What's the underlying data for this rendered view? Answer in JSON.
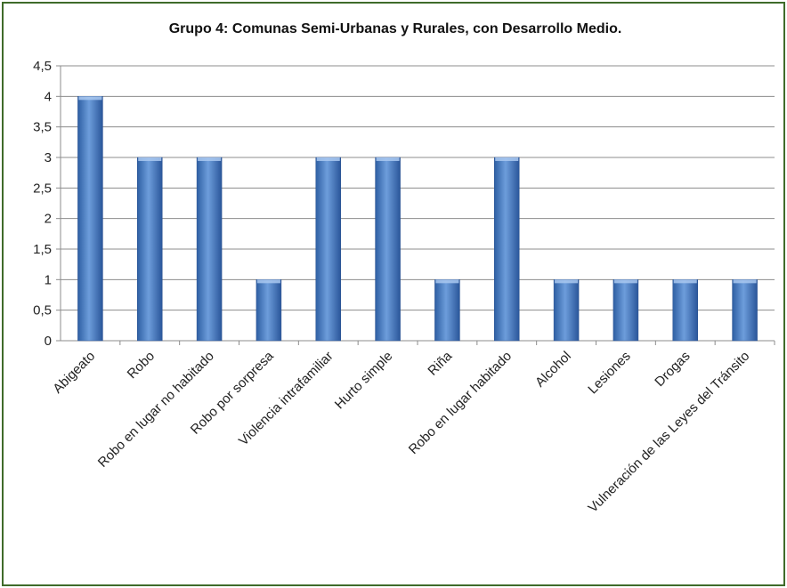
{
  "chart_data": {
    "type": "bar",
    "title": "Grupo 4: Comunas Semi-Urbanas y Rurales, con Desarrollo Medio.",
    "categories": [
      "Abigeato",
      "Robo",
      "Robo en lugar no habitado",
      "Robo por sorpresa",
      "Violencia intrafamiliar",
      "Hurto simple",
      "Riña",
      "Robo en lugar habitado",
      "Alcohol",
      "Lesiones",
      "Drogas",
      "Vulneración de las Leyes del Tránsito"
    ],
    "values": [
      4,
      3,
      3,
      1,
      3,
      3,
      1,
      3,
      1,
      1,
      1,
      1
    ],
    "y_ticks": [
      "0",
      "0,5",
      "1",
      "1,5",
      "2",
      "2,5",
      "3",
      "3,5",
      "4",
      "4,5"
    ],
    "ylim": [
      0,
      4.5
    ],
    "grid": true,
    "legend": "none",
    "bar_color": "#4a7cc0",
    "frame_color": "#3f6b2a"
  }
}
